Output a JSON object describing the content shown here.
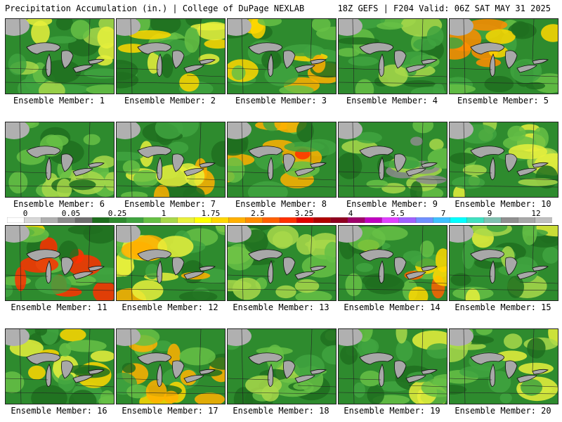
{
  "header": {
    "title": "Precipitation Accumulation (in.) | College of DuPage NEXLAB",
    "run_info": "18Z GEFS | F204 Valid: 06Z SAT MAY 31 2025"
  },
  "members": [
    "Ensemble Member: 1",
    "Ensemble Member: 2",
    "Ensemble Member: 3",
    "Ensemble Member: 4",
    "Ensemble Member: 5",
    "Ensemble Member: 6",
    "Ensemble Member: 7",
    "Ensemble Member: 8",
    "Ensemble Member: 9",
    "Ensemble Member: 10",
    "Ensemble Member: 11",
    "Ensemble Member: 12",
    "Ensemble Member: 13",
    "Ensemble Member: 14",
    "Ensemble Member: 15",
    "Ensemble Member: 16",
    "Ensemble Member: 17",
    "Ensemble Member: 18",
    "Ensemble Member: 19",
    "Ensemble Member: 20"
  ],
  "colorbar": {
    "labels": [
      "0",
      "0.05",
      "0.25",
      "1",
      "1.75",
      "2.5",
      "3.25",
      "4",
      "5.5",
      "7",
      "9",
      "12"
    ],
    "colors": [
      "#ffffff",
      "#d8d8d8",
      "#b0b0b0",
      "#8c8c8c",
      "#6e6e6e",
      "#1e6e1e",
      "#2e8b2e",
      "#3fa33f",
      "#66c045",
      "#a8d84a",
      "#e8f03c",
      "#ffff00",
      "#ffd700",
      "#ffb000",
      "#ff8c00",
      "#ff6000",
      "#ff3000",
      "#e00000",
      "#b00000",
      "#900020",
      "#a0006a",
      "#c000c0",
      "#e040ff",
      "#a060ff",
      "#7090ff",
      "#40c0ff",
      "#00ffff",
      "#40e0c0",
      "#80c0b0",
      "#909090",
      "#a8a8a8",
      "#c0c0c0"
    ]
  }
}
